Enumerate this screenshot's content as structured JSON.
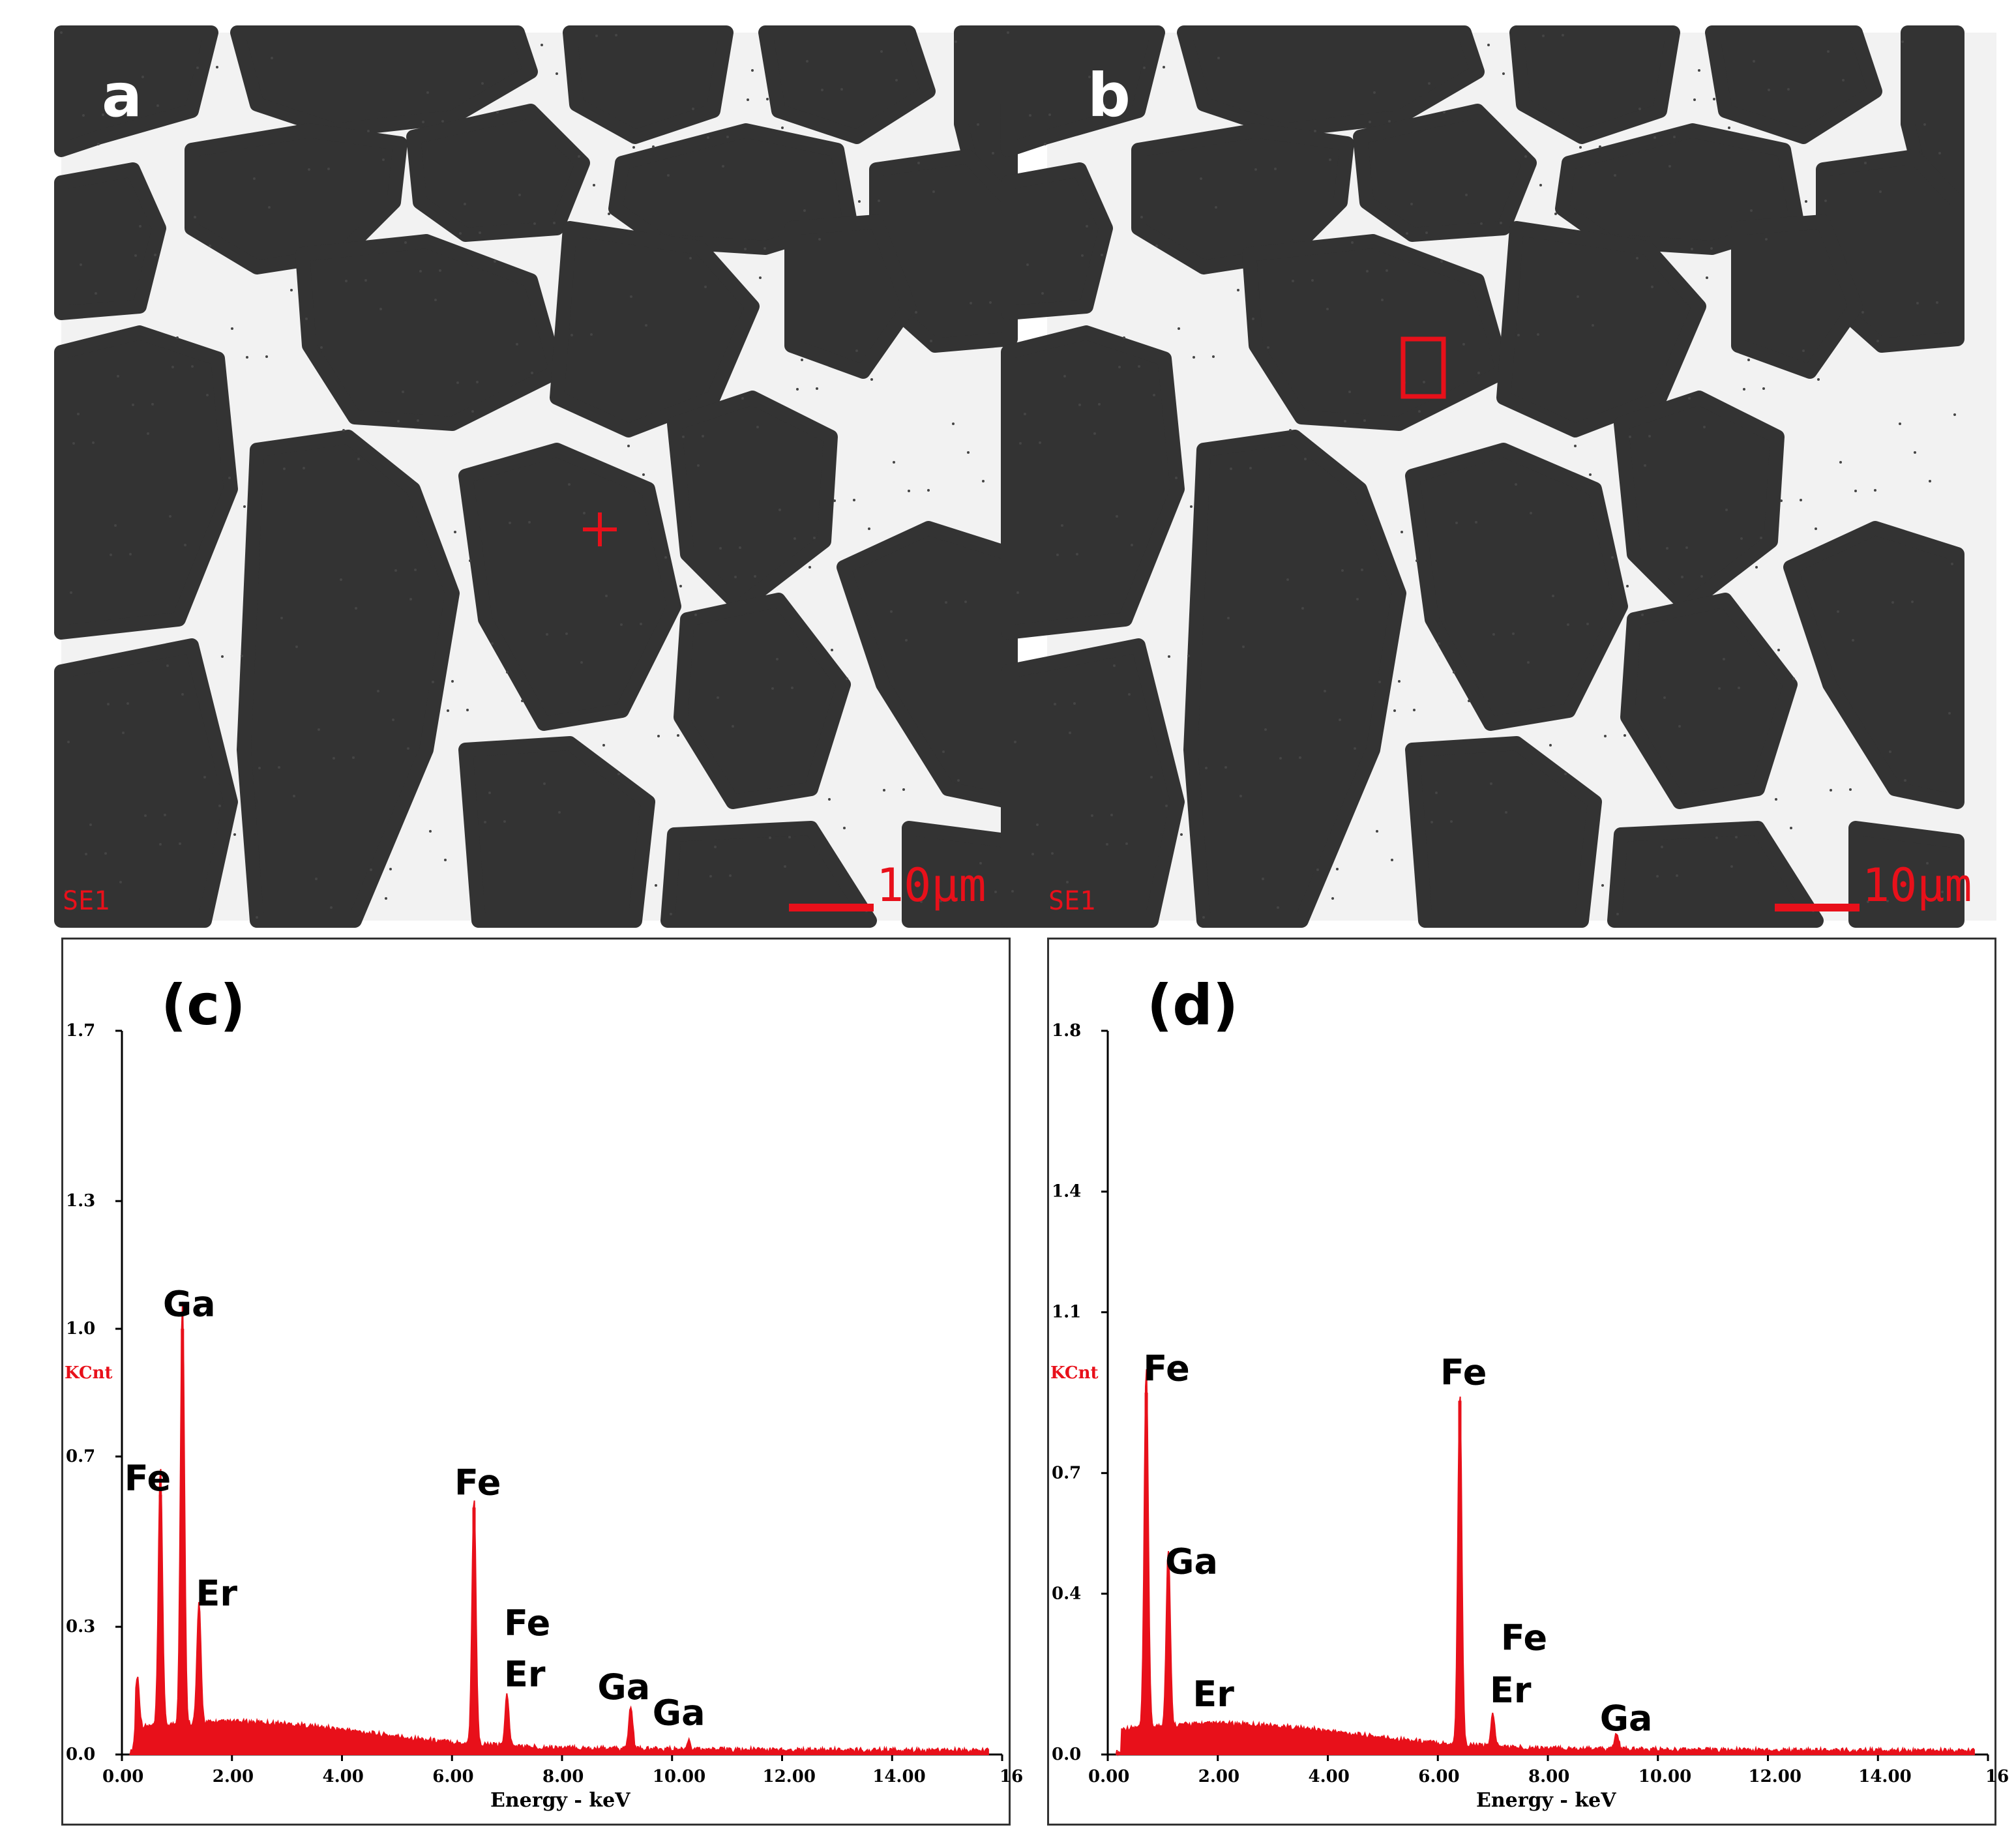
{
  "figure": {
    "panel_a": {
      "label": "a",
      "detector": "SE1",
      "scale_bar": "10μm",
      "marker": "cross"
    },
    "panel_b": {
      "label": "b",
      "detector": "SE1",
      "scale_bar": "10μm",
      "marker": "rectangle"
    },
    "colors": {
      "spectrum": "#e8101a",
      "marker": "#e8101a",
      "sem_bg": "#2b2b2b",
      "sem_grain": "#333333",
      "sem_phase": "#f2f2f2"
    }
  },
  "chart_data": [
    {
      "type": "line",
      "panel_label": "(c)",
      "xlabel": "Energy - keV",
      "ylabel": "KCnt",
      "xlim": [
        0,
        16
      ],
      "ylim": [
        0,
        1.7
      ],
      "x_ticks": [
        "0.00",
        "2.00",
        "4.00",
        "6.00",
        "8.00",
        "10.00",
        "12.00",
        "14.00",
        "16"
      ],
      "y_ticks": [
        "0.0",
        "0.3",
        "0.7",
        "1.0",
        "1.3",
        "1.7"
      ],
      "peaks": [
        {
          "x": 0.28,
          "y": 0.12
        },
        {
          "x": 0.7,
          "y": 0.61
        },
        {
          "x": 1.1,
          "y": 1.0
        },
        {
          "x": 1.4,
          "y": 0.28
        },
        {
          "x": 6.4,
          "y": 0.58
        },
        {
          "x": 7.0,
          "y": 0.12
        },
        {
          "x": 9.25,
          "y": 0.1
        },
        {
          "x": 10.3,
          "y": 0.02
        }
      ],
      "annotations": [
        {
          "text": "Ga",
          "x": 1.1,
          "y": 1.03
        },
        {
          "text": "Fe",
          "x": 0.4,
          "y": 0.62
        },
        {
          "text": "Er",
          "x": 1.7,
          "y": 0.35
        },
        {
          "text": "Fe",
          "x": 6.4,
          "y": 0.61
        },
        {
          "text": "Fe",
          "x": 7.3,
          "y": 0.28
        },
        {
          "text": "Er",
          "x": 7.3,
          "y": 0.16
        },
        {
          "text": "Ga",
          "x": 9.0,
          "y": 0.13
        },
        {
          "text": "Ga",
          "x": 10.0,
          "y": 0.07
        }
      ]
    },
    {
      "type": "line",
      "panel_label": "(d)",
      "xlabel": "Energy - keV",
      "ylabel": "KCnt",
      "xlim": [
        0,
        16
      ],
      "ylim": [
        0,
        1.8
      ],
      "x_ticks": [
        "0.00",
        "2.00",
        "4.00",
        "6.00",
        "8.00",
        "10.00",
        "12.00",
        "14.00",
        "16"
      ],
      "y_ticks": [
        "0.0",
        "0.4",
        "0.7",
        "1.1",
        "1.4",
        "1.8"
      ],
      "peaks": [
        {
          "x": 0.7,
          "y": 0.9
        },
        {
          "x": 1.1,
          "y": 0.44
        },
        {
          "x": 6.4,
          "y": 0.88
        },
        {
          "x": 7.0,
          "y": 0.08
        },
        {
          "x": 9.25,
          "y": 0.04
        }
      ],
      "annotations": [
        {
          "text": "Fe",
          "x": 1.0,
          "y": 0.93
        },
        {
          "text": "Ga",
          "x": 1.4,
          "y": 0.45
        },
        {
          "text": "Er",
          "x": 1.9,
          "y": 0.12
        },
        {
          "text": "Fe",
          "x": 6.4,
          "y": 0.92
        },
        {
          "text": "Fe",
          "x": 7.5,
          "y": 0.26
        },
        {
          "text": "Er",
          "x": 7.3,
          "y": 0.13
        },
        {
          "text": "Ga",
          "x": 9.3,
          "y": 0.06
        }
      ]
    }
  ]
}
